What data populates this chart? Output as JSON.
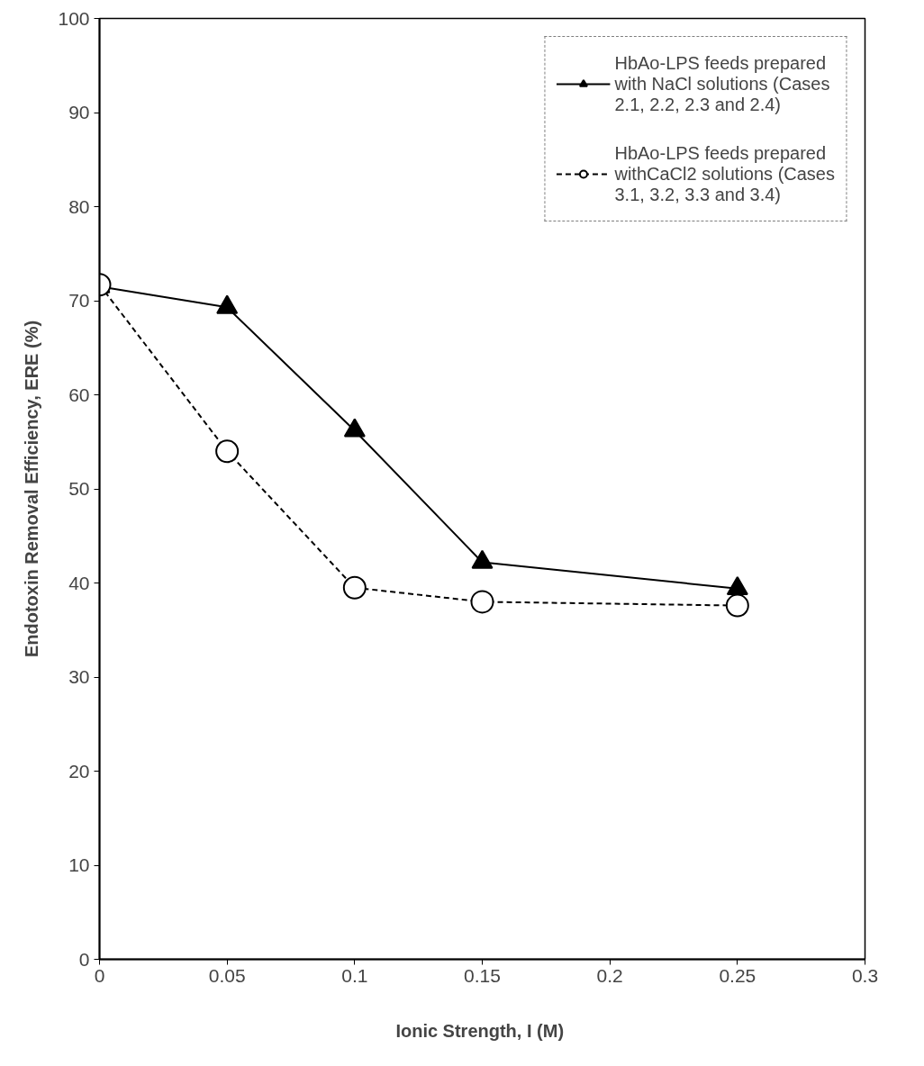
{
  "chart_data": {
    "type": "line",
    "xlabel": "Ionic Strength, I  (M)",
    "ylabel": "Endotoxin Removal Efficiency, ERE (%)",
    "xlim": [
      0,
      0.3
    ],
    "xticks": [
      0,
      0.05,
      0.1,
      0.15,
      0.2,
      0.25,
      0.3
    ],
    "ylim": [
      0,
      100
    ],
    "yticks": [
      0,
      10,
      20,
      30,
      40,
      50,
      60,
      70,
      80,
      90,
      100
    ],
    "x": [
      0,
      0.05,
      0.1,
      0.15,
      0.25
    ],
    "grid": false,
    "legend": "top right",
    "series": [
      {
        "name": "HbAo-LPS feeds prepared with NaCl solutions (Cases 2.1, 2.2, 2.3 and 2.4)",
        "color": "#000000",
        "marker": "triangle",
        "line_style": "solid",
        "values": [
          71.5,
          69.3,
          56.2,
          42.2,
          39.4
        ]
      },
      {
        "name": "HbAo-LPS feeds prepared withCaCl2 solutions (Cases 3.1, 3.2, 3.3 and 3.4)",
        "color": "#000000",
        "marker": "circle",
        "line_style": "dashed",
        "values": [
          71.7,
          54.0,
          39.5,
          38.0,
          37.6
        ]
      }
    ]
  }
}
